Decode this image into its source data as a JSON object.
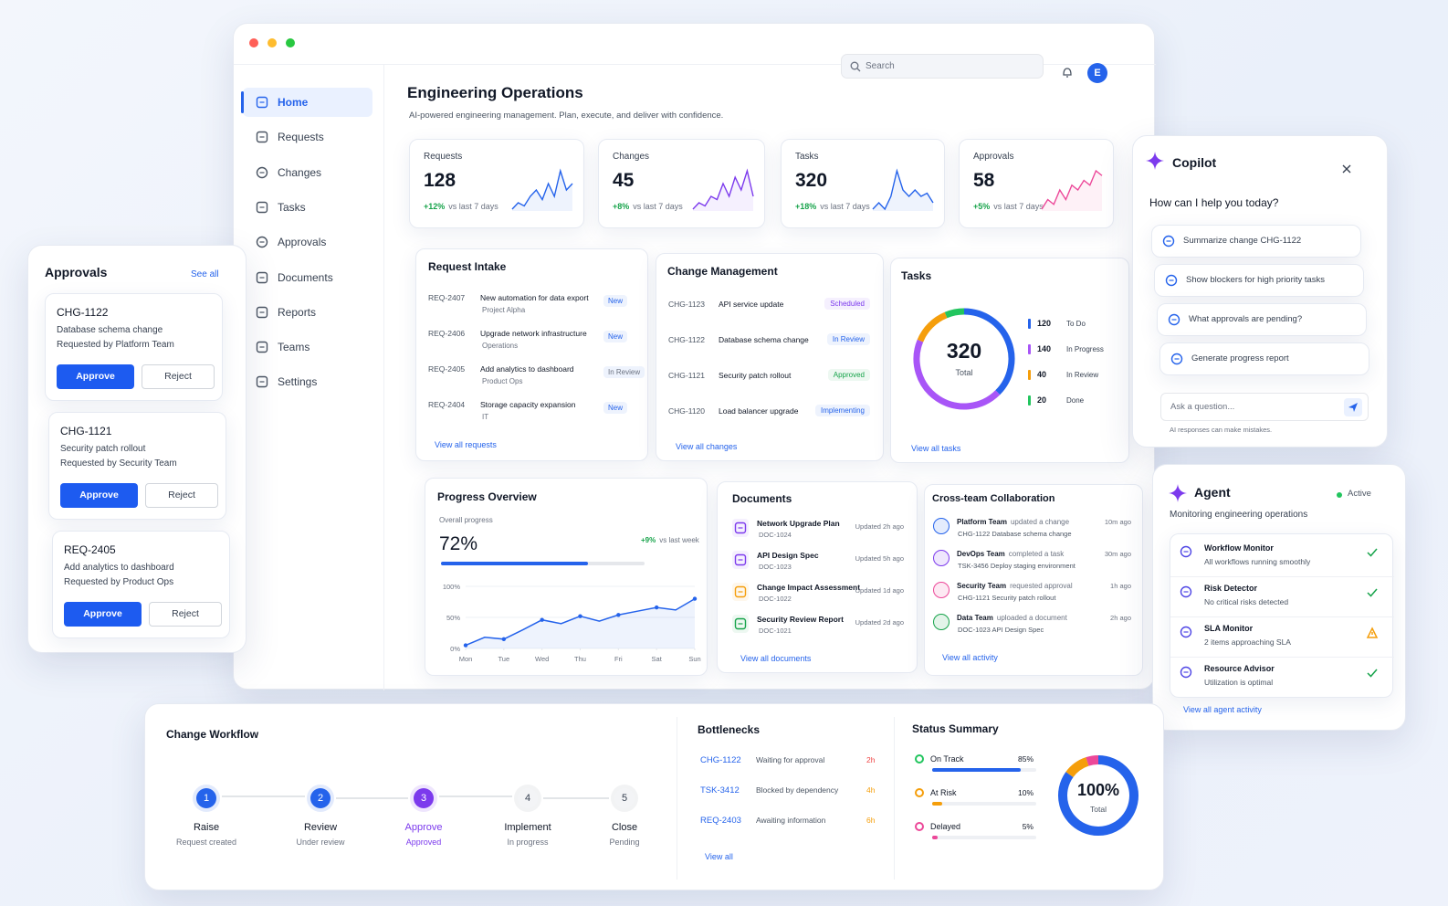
{
  "window": {
    "search": "Search",
    "avatar": "E"
  },
  "sidebar": [
    "Home",
    "Requests",
    "Changes",
    "Tasks",
    "Approvals",
    "Documents",
    "Reports",
    "Teams",
    "Settings"
  ],
  "header": {
    "title": "Engineering Operations",
    "subtitle": "AI-powered engineering management. Plan, execute, and deliver with confidence."
  },
  "kpis": [
    {
      "label": "Requests",
      "value": 128,
      "change": "+12%",
      "note": "vs last 7 days",
      "color": "#2563eb",
      "trend": [
        2,
        3,
        2.5,
        4,
        5,
        3.5,
        6,
        4,
        8,
        5,
        6
      ]
    },
    {
      "label": "Changes",
      "value": 45,
      "change": "+8%",
      "note": "vs last 7 days",
      "color": "#7c3aed",
      "trend": [
        1,
        2,
        1.5,
        3,
        2.5,
        5,
        3,
        6,
        4,
        7,
        3
      ]
    },
    {
      "label": "Tasks",
      "value": 320,
      "change": "+18%",
      "note": "vs last 7 days",
      "color": "#2563eb",
      "trend": [
        2,
        3,
        2,
        4,
        8,
        5,
        4,
        5,
        4,
        4.5,
        3
      ]
    },
    {
      "label": "Approvals",
      "value": 58,
      "change": "+5%",
      "note": "vs last 7 days",
      "color": "#ec4899",
      "trend": [
        1,
        2,
        1.5,
        3,
        2,
        3.5,
        3,
        4,
        3.5,
        5,
        4.5
      ]
    }
  ],
  "request_intake": {
    "title": "Request Intake",
    "rows": [
      {
        "id": "REQ-2407",
        "title": "New automation for data export",
        "sub": "Project Alpha",
        "status": "New",
        "color": "#2563eb"
      },
      {
        "id": "REQ-2406",
        "title": "Upgrade network infrastructure",
        "sub": "Operations",
        "status": "New",
        "color": "#2563eb"
      },
      {
        "id": "REQ-2405",
        "title": "Add analytics to dashboard",
        "sub": "Product Ops",
        "status": "In Review",
        "color": "#6b7280"
      },
      {
        "id": "REQ-2404",
        "title": "Storage capacity expansion",
        "sub": "IT",
        "status": "New",
        "color": "#2563eb"
      }
    ],
    "link": "View all requests"
  },
  "change_management": {
    "title": "Change Management",
    "rows": [
      {
        "id": "CHG-1123",
        "title": "API service update",
        "status": "Scheduled",
        "color": "#7c3aed"
      },
      {
        "id": "CHG-1122",
        "title": "Database schema change",
        "status": "In Review",
        "color": "#2563eb"
      },
      {
        "id": "CHG-1121",
        "title": "Security patch rollout",
        "status": "Approved",
        "color": "#16a34a"
      },
      {
        "id": "CHG-1120",
        "title": "Load balancer upgrade",
        "status": "Implementing",
        "color": "#2563eb"
      }
    ],
    "link": "View all changes"
  },
  "tasks": {
    "title": "Tasks",
    "total": 320,
    "total_label": "Total",
    "segments": [
      {
        "value": 120,
        "label": "To Do",
        "color": "#2563eb"
      },
      {
        "value": 140,
        "label": "In Progress",
        "color": "#a855f7"
      },
      {
        "value": 40,
        "label": "In Review",
        "color": "#f59e0b"
      },
      {
        "value": 20,
        "label": "Done",
        "color": "#22c55e"
      }
    ],
    "link": "View all tasks"
  },
  "progress": {
    "title": "Progress Overview",
    "subtitle": "Overall progress",
    "value": 72,
    "value_label": "72%",
    "change": "+9%",
    "change_note": "vs last week",
    "chart": {
      "type": "line",
      "x": [
        0,
        0.5,
        1,
        1.5,
        2,
        2.5,
        3,
        3.5,
        4,
        4.5,
        5,
        5.5,
        6
      ],
      "values": [
        5,
        18,
        15,
        30,
        46,
        40,
        52,
        44,
        54,
        60,
        66,
        62,
        80
      ],
      "xlim": [
        0,
        6
      ],
      "xticks": [
        {
          "value": 0,
          "label": "Mon"
        },
        {
          "value": 1,
          "label": "Tue"
        },
        {
          "value": 2,
          "label": "Wed"
        },
        {
          "value": 3,
          "label": "Thu"
        },
        {
          "value": 4,
          "label": "Fri"
        },
        {
          "value": 5,
          "label": "Sat"
        },
        {
          "value": 6,
          "label": "Sun"
        }
      ],
      "ylim": [
        0,
        100
      ],
      "yticks": [
        {
          "value": 0,
          "label": "0%"
        },
        {
          "value": 50,
          "label": "50%"
        },
        {
          "value": 100,
          "label": "100%"
        }
      ],
      "color": "#2563eb",
      "grid": true
    }
  },
  "documents": {
    "title": "Documents",
    "rows": [
      {
        "name": "Network Upgrade Plan",
        "id": "DOC-1024",
        "updated": "Updated 2h ago",
        "color": "#7c3aed"
      },
      {
        "name": "API Design Spec",
        "id": "DOC-1023",
        "updated": "Updated 5h ago",
        "color": "#7c3aed"
      },
      {
        "name": "Change Impact Assessment",
        "id": "DOC-1022",
        "updated": "Updated 1d ago",
        "color": "#f59e0b"
      },
      {
        "name": "Security Review Report",
        "id": "DOC-1021",
        "updated": "Updated 2d ago",
        "color": "#16a34a"
      }
    ],
    "link": "View all documents"
  },
  "collaboration": {
    "title": "Cross-team Collaboration",
    "rows": [
      {
        "team": "Platform Team",
        "action": "updated a change",
        "time": "10m ago",
        "detail": "CHG-1122 Database schema change",
        "color": "#2563eb"
      },
      {
        "team": "DevOps Team",
        "action": "completed a task",
        "time": "30m ago",
        "detail": "TSK-3456 Deploy staging environment",
        "color": "#7c3aed"
      },
      {
        "team": "Security Team",
        "action": "requested approval",
        "time": "1h ago",
        "detail": "CHG-1121 Security patch rollout",
        "color": "#ec4899"
      },
      {
        "team": "Data Team",
        "action": "uploaded a document",
        "time": "2h ago",
        "detail": "DOC-1023 API Design Spec",
        "color": "#16a34a"
      }
    ],
    "link": "View all activity"
  },
  "approvals": {
    "title": "Approvals",
    "link": "See all",
    "approve": "Approve",
    "reject": "Reject",
    "items": [
      {
        "id": "CHG-1122",
        "title": "Database schema change",
        "requester": "Requested by Platform Team"
      },
      {
        "id": "CHG-1121",
        "title": "Security patch rollout",
        "requester": "Requested by Security Team"
      },
      {
        "id": "REQ-2405",
        "title": "Add analytics to dashboard",
        "requester": "Requested by Product Ops"
      }
    ]
  },
  "copilot": {
    "title": "Copilot",
    "question": "How can I help you today?",
    "suggestions": [
      "Summarize change CHG-1122",
      "Show blockers for high priority tasks",
      "What approvals are pending?",
      "Generate progress report"
    ],
    "placeholder": "Ask a question...",
    "disclaimer": "AI responses can make mistakes."
  },
  "agent": {
    "title": "Agent",
    "status": "Active",
    "subtitle": "Monitoring engineering operations",
    "items": [
      {
        "name": "Workflow Monitor",
        "detail": "All workflows running smoothly",
        "color": "#16a34a"
      },
      {
        "name": "Risk Detector",
        "detail": "No critical risks detected",
        "color": "#16a34a"
      },
      {
        "name": "SLA Monitor",
        "detail": "2 items approaching SLA",
        "color": "#f59e0b"
      },
      {
        "name": "Resource Advisor",
        "detail": "Utilization is optimal",
        "color": "#16a34a"
      }
    ],
    "link": "View all agent activity"
  },
  "workflow": {
    "title": "Change Workflow",
    "steps": [
      {
        "number": 1,
        "name": "Raise",
        "status": "Request created",
        "color": "#2563eb"
      },
      {
        "number": 2,
        "name": "Review",
        "status": "Under review",
        "color": "#2563eb"
      },
      {
        "number": 3,
        "name": "Approve",
        "status": "Approved",
        "color": "#7c3aed"
      },
      {
        "number": 4,
        "name": "Implement",
        "status": "In progress",
        "color": "#9ca3af"
      },
      {
        "number": 5,
        "name": "Close",
        "status": "Pending",
        "color": "#9ca3af"
      }
    ]
  },
  "bottlenecks": {
    "title": "Bottlenecks",
    "rows": [
      {
        "id": "CHG-1122",
        "reason": "Waiting for approval",
        "age": "2h",
        "color": "#ef4444"
      },
      {
        "id": "TSK-3412",
        "reason": "Blocked by dependency",
        "age": "4h",
        "color": "#f59e0b"
      },
      {
        "id": "REQ-2403",
        "reason": "Awaiting information",
        "age": "6h",
        "color": "#f59e0b"
      }
    ],
    "link": "View all"
  },
  "status_summary": {
    "title": "Status Summary",
    "items": [
      {
        "label": "On Track",
        "value": 85,
        "value_label": "85%",
        "color": "#2563eb"
      },
      {
        "label": "At Risk",
        "value": 10,
        "value_label": "10%",
        "color": "#f59e0b"
      },
      {
        "label": "Delayed",
        "value": 5,
        "value_label": "5%",
        "color": "#ec4899"
      }
    ],
    "total": 100,
    "total_label": "100%",
    "total_sub": "Total"
  }
}
